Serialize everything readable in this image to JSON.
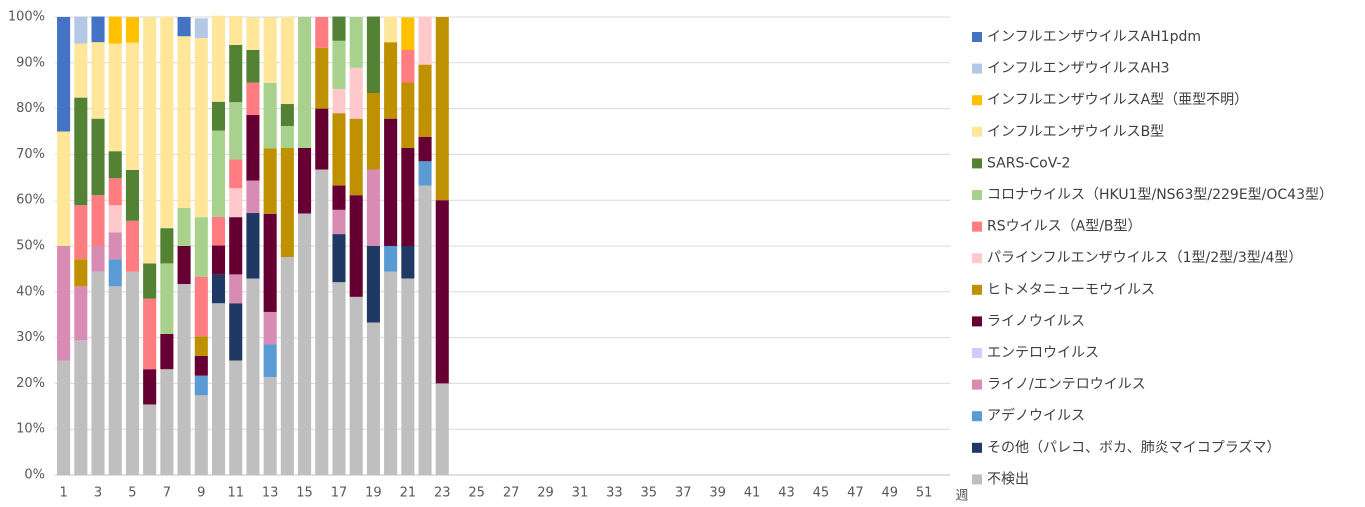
{
  "chart_data": {
    "type": "stacked_bar_percent",
    "x_label": "週",
    "categories": [
      "1",
      null,
      "3",
      null,
      "5",
      null,
      "7",
      null,
      "9",
      null,
      "11",
      null,
      "13",
      null,
      "15",
      null,
      "17",
      null,
      "19",
      null,
      "21",
      null,
      "23",
      null,
      "25",
      null,
      "27",
      null,
      "29",
      null,
      "31",
      null,
      "33",
      null,
      "35",
      null,
      "37",
      null,
      "39",
      null,
      "41",
      null,
      "43",
      null,
      "45",
      null,
      "47",
      null,
      "49",
      null,
      "51",
      null
    ],
    "ylim": [
      0,
      100
    ],
    "yticks": [
      {
        "value": 0,
        "label": "0%"
      },
      {
        "value": 10,
        "label": "10%"
      },
      {
        "value": 20,
        "label": "20%"
      },
      {
        "value": 30,
        "label": "30%"
      },
      {
        "value": 40,
        "label": "40%"
      },
      {
        "value": 50,
        "label": "50%"
      },
      {
        "value": 60,
        "label": "60%"
      },
      {
        "value": 70,
        "label": "70%"
      },
      {
        "value": 80,
        "label": "80%"
      },
      {
        "value": 90,
        "label": "90%"
      },
      {
        "value": 100,
        "label": "100%"
      }
    ],
    "grid": true,
    "legend": "right",
    "series": [
      {
        "name": "不検出",
        "color": "#bfbfbf",
        "values": [
          25,
          29.4,
          44.4,
          41.2,
          44.4,
          15.4,
          23.1,
          41.7,
          17.4,
          37.5,
          25,
          42.9,
          21.4,
          47.6,
          57.1,
          66.7,
          42.1,
          38.9,
          33.3,
          44.4,
          42.9,
          63.2,
          20,
          null,
          null,
          null,
          null,
          null,
          null,
          null,
          null,
          null,
          null,
          null,
          null,
          null,
          null,
          null,
          null,
          null,
          null,
          null,
          null,
          null,
          null,
          null,
          null,
          null,
          null,
          null,
          null,
          null
        ]
      },
      {
        "name": "その他（パレコ、ボカ、肺炎マイコプラズマ）",
        "color": "#1f3864",
        "values": [
          0,
          0,
          0,
          0,
          0,
          0,
          0,
          0,
          0,
          6.3,
          12.5,
          14.3,
          0,
          0,
          0,
          0,
          10.5,
          0,
          16.7,
          0,
          7.1,
          0,
          0,
          null,
          null,
          null,
          null,
          null,
          null,
          null,
          null,
          null,
          null,
          null,
          null,
          null,
          null,
          null,
          null,
          null,
          null,
          null,
          null,
          null,
          null,
          null,
          null,
          null,
          null,
          null,
          null,
          null
        ]
      },
      {
        "name": "アデノウイルス",
        "color": "#5b9bd5",
        "values": [
          0,
          0,
          0,
          5.9,
          0,
          0,
          0,
          0,
          4.3,
          0,
          0,
          0,
          7.1,
          0,
          0,
          0,
          0,
          0,
          0,
          5.6,
          0,
          5.3,
          0,
          null,
          null,
          null,
          null,
          null,
          null,
          null,
          null,
          null,
          null,
          null,
          null,
          null,
          null,
          null,
          null,
          null,
          null,
          null,
          null,
          null,
          null,
          null,
          null,
          null,
          null,
          null,
          null,
          null
        ]
      },
      {
        "name": "ライノ/エンテロウイルス",
        "color": "#d98cb3",
        "values": [
          25,
          11.8,
          5.6,
          5.9,
          0,
          0,
          0,
          0,
          0,
          0,
          6.3,
          7.1,
          7.1,
          0,
          0,
          0,
          5.3,
          0,
          16.7,
          0,
          0,
          0,
          0,
          null,
          null,
          null,
          null,
          null,
          null,
          null,
          null,
          null,
          null,
          null,
          null,
          null,
          null,
          null,
          null,
          null,
          null,
          null,
          null,
          null,
          null,
          null,
          null,
          null,
          null,
          null,
          null,
          null
        ]
      },
      {
        "name": "エンテロウイルス",
        "color": "#ccccff",
        "values": [
          0,
          0,
          0,
          0,
          0,
          0,
          0,
          0,
          0,
          0,
          0,
          0,
          0,
          0,
          0,
          0,
          0,
          0,
          0,
          0,
          0,
          0,
          0,
          null,
          null,
          null,
          null,
          null,
          null,
          null,
          null,
          null,
          null,
          null,
          null,
          null,
          null,
          null,
          null,
          null,
          null,
          null,
          null,
          null,
          null,
          null,
          null,
          null,
          null,
          null,
          null,
          null
        ]
      },
      {
        "name": "ライノウイルス",
        "color": "#660033",
        "values": [
          0,
          0,
          0,
          0,
          0,
          7.7,
          7.7,
          8.3,
          4.3,
          6.3,
          12.5,
          14.3,
          21.4,
          0,
          14.3,
          13.3,
          5.3,
          22.2,
          0,
          27.8,
          21.4,
          5.3,
          40,
          null,
          null,
          null,
          null,
          null,
          null,
          null,
          null,
          null,
          null,
          null,
          null,
          null,
          null,
          null,
          null,
          null,
          null,
          null,
          null,
          null,
          null,
          null,
          null,
          null,
          null,
          null,
          null,
          null
        ]
      },
      {
        "name": "ヒトメタニューモウイルス",
        "color": "#bf9000",
        "values": [
          0,
          5.9,
          0,
          0,
          0,
          0,
          0,
          0,
          4.3,
          0,
          0,
          0,
          14.3,
          23.8,
          0,
          13.3,
          15.8,
          16.7,
          16.7,
          16.7,
          14.3,
          15.8,
          40,
          null,
          null,
          null,
          null,
          null,
          null,
          null,
          null,
          null,
          null,
          null,
          null,
          null,
          null,
          null,
          null,
          null,
          null,
          null,
          null,
          null,
          null,
          null,
          null,
          null,
          null,
          null,
          null,
          null
        ]
      },
      {
        "name": "パラインフルエンザウイルス（1型/2型/3型/4型）",
        "color": "#ffc9cc",
        "values": [
          0,
          0,
          0,
          5.9,
          0,
          0,
          0,
          0,
          0,
          0,
          6.3,
          0,
          0,
          0,
          0,
          0,
          5.3,
          11.1,
          0,
          0,
          0,
          10.5,
          0,
          null,
          null,
          null,
          null,
          null,
          null,
          null,
          null,
          null,
          null,
          null,
          null,
          null,
          null,
          null,
          null,
          null,
          null,
          null,
          null,
          null,
          null,
          null,
          null,
          null,
          null,
          null,
          null,
          null
        ]
      },
      {
        "name": "RSウイルス（A型/B型）",
        "color": "#ff7c80",
        "values": [
          0,
          11.8,
          11.1,
          5.9,
          11.1,
          15.4,
          0,
          0,
          13.0,
          6.3,
          6.3,
          7.1,
          0,
          0,
          0,
          6.7,
          0,
          0,
          0,
          0,
          7.1,
          0,
          0,
          null,
          null,
          null,
          null,
          null,
          null,
          null,
          null,
          null,
          null,
          null,
          null,
          null,
          null,
          null,
          null,
          null,
          null,
          null,
          null,
          null,
          null,
          null,
          null,
          null,
          null,
          null,
          null,
          null
        ]
      },
      {
        "name": "コロナウイルス（HKU1型/NS63型/229E型/OC43型）",
        "color": "#a9d18e",
        "values": [
          0,
          0,
          0,
          0,
          0,
          0,
          15.4,
          8.3,
          13.0,
          18.8,
          12.5,
          0,
          14.3,
          4.8,
          28.6,
          0,
          10.5,
          11.1,
          0,
          0,
          0,
          0,
          0,
          null,
          null,
          null,
          null,
          null,
          null,
          null,
          null,
          null,
          null,
          null,
          null,
          null,
          null,
          null,
          null,
          null,
          null,
          null,
          null,
          null,
          null,
          null,
          null,
          null,
          null,
          null,
          null,
          null
        ]
      },
      {
        "name": "SARS-CoV-2",
        "color": "#548235",
        "values": [
          0,
          23.5,
          16.7,
          5.9,
          11.1,
          7.7,
          7.7,
          0,
          0,
          6.3,
          12.5,
          7.1,
          0,
          4.8,
          0,
          0,
          5.3,
          0,
          16.7,
          0,
          0,
          0,
          0,
          null,
          null,
          null,
          null,
          null,
          null,
          null,
          null,
          null,
          null,
          null,
          null,
          null,
          null,
          null,
          null,
          null,
          null,
          null,
          null,
          null,
          null,
          null,
          null,
          null,
          null,
          null,
          null,
          null
        ]
      },
      {
        "name": "インフルエンザウイルスB型",
        "color": "#ffe699",
        "values": [
          25,
          11.8,
          16.7,
          23.5,
          27.8,
          53.8,
          46.2,
          37.5,
          39.1,
          18.8,
          6.3,
          7.1,
          14.3,
          19.0,
          0,
          0,
          0,
          0,
          0,
          5.6,
          0,
          0,
          0,
          null,
          null,
          null,
          null,
          null,
          null,
          null,
          null,
          null,
          null,
          null,
          null,
          null,
          null,
          null,
          null,
          null,
          null,
          null,
          null,
          null,
          null,
          null,
          null,
          null,
          null,
          null,
          null,
          null
        ]
      },
      {
        "name": "インフルエンザウイルスA型（亜型不明）",
        "color": "#ffc000",
        "values": [
          0,
          0,
          0,
          5.9,
          5.6,
          0,
          0,
          0,
          0,
          0,
          0,
          0,
          0,
          0,
          0,
          0,
          0,
          0,
          0,
          0,
          7.1,
          0,
          0,
          null,
          null,
          null,
          null,
          null,
          null,
          null,
          null,
          null,
          null,
          null,
          null,
          null,
          null,
          null,
          null,
          null,
          null,
          null,
          null,
          null,
          null,
          null,
          null,
          null,
          null,
          null,
          null,
          null
        ]
      },
      {
        "name": "インフルエンザウイルスAH3",
        "color": "#b4c7e7",
        "values": [
          0,
          5.9,
          0,
          0,
          0,
          0,
          0,
          0,
          4.3,
          0,
          0,
          0,
          0,
          0,
          0,
          0,
          0,
          0,
          0,
          0,
          0,
          0,
          0,
          null,
          null,
          null,
          null,
          null,
          null,
          null,
          null,
          null,
          null,
          null,
          null,
          null,
          null,
          null,
          null,
          null,
          null,
          null,
          null,
          null,
          null,
          null,
          null,
          null,
          null,
          null,
          null,
          null
        ]
      },
      {
        "name": "インフルエンザウイルスAH1pdm",
        "color": "#4472c4",
        "values": [
          25,
          0,
          5.6,
          0,
          0,
          0,
          0,
          4.2,
          0,
          0,
          0,
          0,
          0,
          0,
          0,
          0,
          0,
          0,
          0,
          0,
          0,
          0,
          0,
          null,
          null,
          null,
          null,
          null,
          null,
          null,
          null,
          null,
          null,
          null,
          null,
          null,
          null,
          null,
          null,
          null,
          null,
          null,
          null,
          null,
          null,
          null,
          null,
          null,
          null,
          null,
          null,
          null
        ]
      }
    ]
  }
}
